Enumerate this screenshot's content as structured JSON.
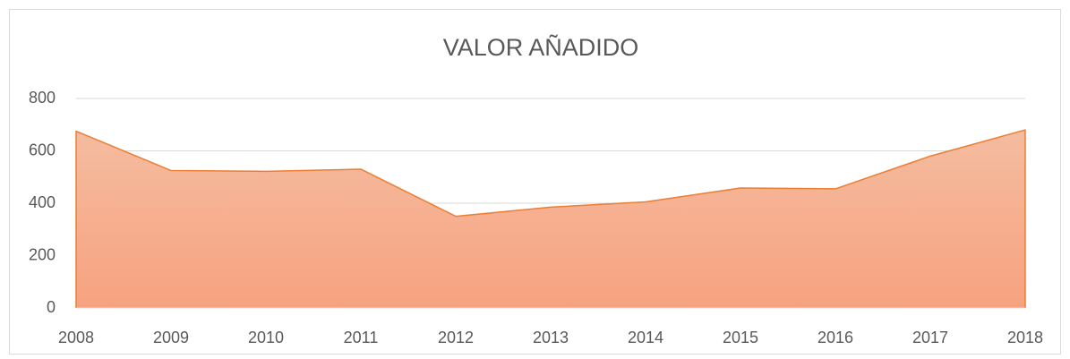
{
  "chart_data": {
    "type": "area",
    "title": "VALOR AÑADIDO",
    "categories": [
      "2008",
      "2009",
      "2010",
      "2011",
      "2012",
      "2013",
      "2014",
      "2015",
      "2016",
      "2017",
      "2018"
    ],
    "values": [
      675,
      525,
      522,
      530,
      350,
      385,
      405,
      458,
      455,
      580,
      680
    ],
    "color": "#ed7d31",
    "fill_top": "#f5bca0",
    "fill_bottom": "#f6a27f",
    "ylim": [
      0,
      800
    ],
    "yticks": [
      0,
      200,
      400,
      600,
      800
    ],
    "grid": true
  }
}
